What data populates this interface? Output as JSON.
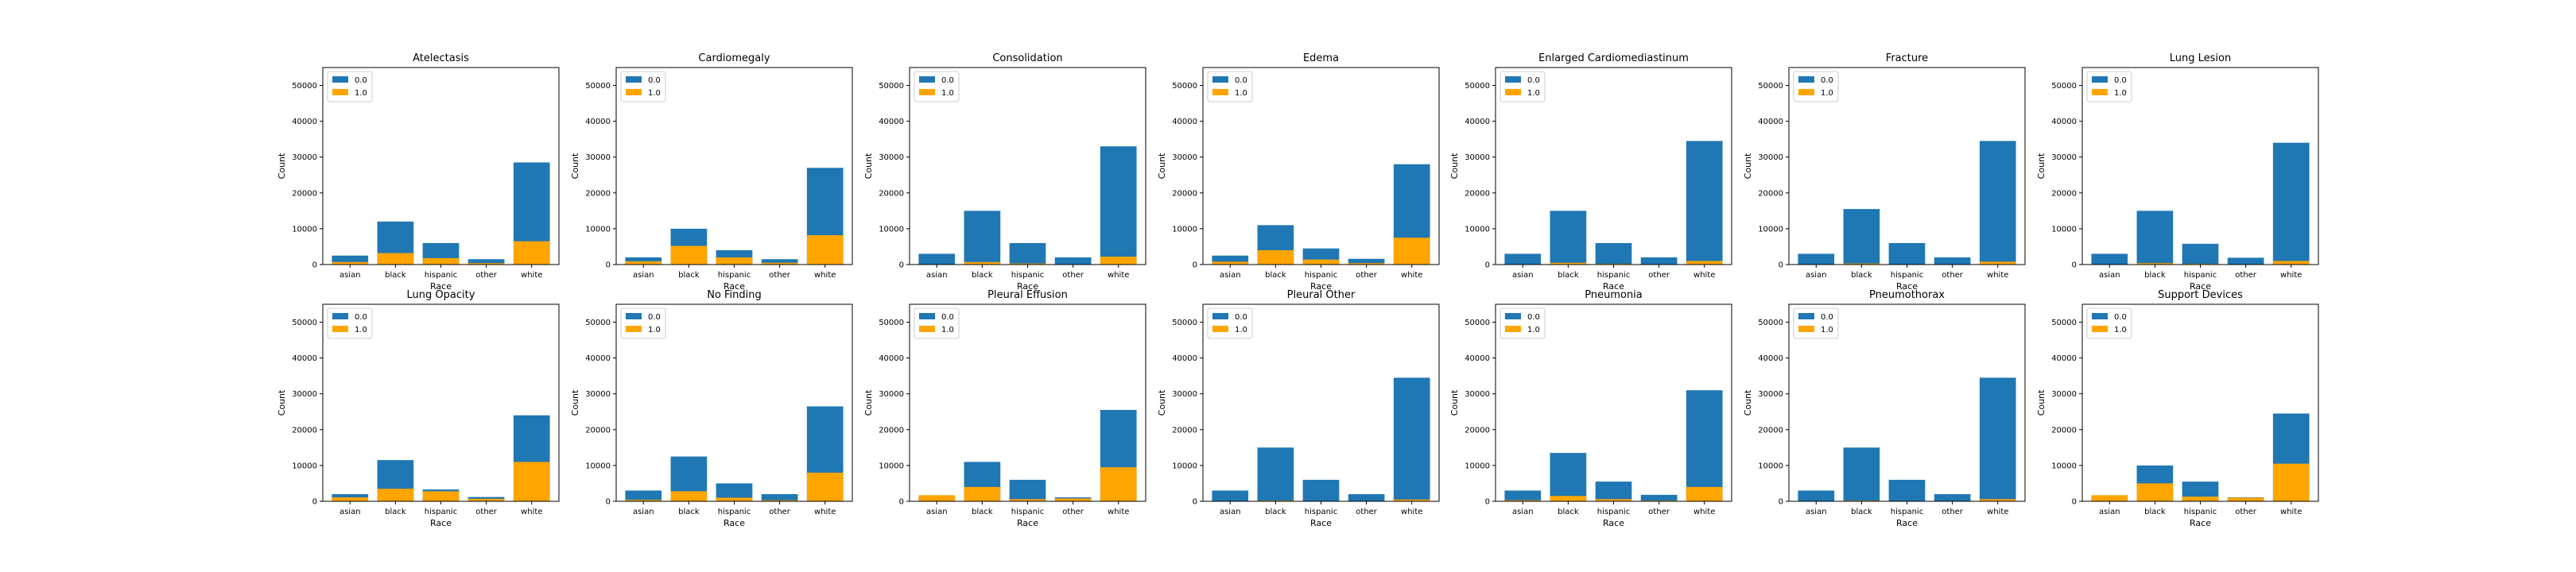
{
  "colors": {
    "0.0": "#1f77b4",
    "1.0": "#ffa500"
  },
  "chart_data": [
    {
      "type": "bar",
      "stacked": "overlaid",
      "title": "Atelectasis",
      "categories": [
        "asian",
        "black",
        "hispanic",
        "other",
        "white"
      ],
      "xlabel": "Race",
      "ylabel": "Count",
      "ylim": [
        0,
        55000
      ],
      "yticks": [
        0,
        10000,
        20000,
        30000,
        40000,
        50000
      ],
      "legend": {
        "placement": "top-left",
        "entries": [
          "0.0",
          "1.0"
        ]
      },
      "series": [
        {
          "name": "0.0",
          "values": [
            2500,
            12000,
            6000,
            1500,
            28500
          ]
        },
        {
          "name": "1.0",
          "values": [
            700,
            3200,
            1800,
            400,
            6500
          ]
        }
      ]
    },
    {
      "type": "bar",
      "stacked": "overlaid",
      "title": "Cardiomegaly",
      "categories": [
        "asian",
        "black",
        "hispanic",
        "other",
        "white"
      ],
      "xlabel": "Race",
      "ylabel": "Count",
      "ylim": [
        0,
        55000
      ],
      "yticks": [
        0,
        10000,
        20000,
        30000,
        40000,
        50000
      ],
      "legend": {
        "placement": "top-left",
        "entries": [
          "0.0",
          "1.0"
        ]
      },
      "series": [
        {
          "name": "0.0",
          "values": [
            2000,
            10000,
            4000,
            1500,
            27000
          ]
        },
        {
          "name": "1.0",
          "values": [
            900,
            5200,
            2000,
            500,
            8200
          ]
        }
      ]
    },
    {
      "type": "bar",
      "stacked": "overlaid",
      "title": "Consolidation",
      "categories": [
        "asian",
        "black",
        "hispanic",
        "other",
        "white"
      ],
      "xlabel": "Race",
      "ylabel": "Count",
      "ylim": [
        0,
        55000
      ],
      "yticks": [
        0,
        10000,
        20000,
        30000,
        40000,
        50000
      ],
      "legend": {
        "placement": "top-left",
        "entries": [
          "0.0",
          "1.0"
        ]
      },
      "series": [
        {
          "name": "0.0",
          "values": [
            3000,
            15000,
            6000,
            2000,
            33000
          ]
        },
        {
          "name": "1.0",
          "values": [
            100,
            700,
            300,
            100,
            2200
          ]
        }
      ]
    },
    {
      "type": "bar",
      "stacked": "overlaid",
      "title": "Edema",
      "categories": [
        "asian",
        "black",
        "hispanic",
        "other",
        "white"
      ],
      "xlabel": "Race",
      "ylabel": "Count",
      "ylim": [
        0,
        55000
      ],
      "yticks": [
        0,
        10000,
        20000,
        30000,
        40000,
        50000
      ],
      "legend": {
        "placement": "top-left",
        "entries": [
          "0.0",
          "1.0"
        ]
      },
      "series": [
        {
          "name": "0.0",
          "values": [
            2500,
            11000,
            4500,
            1600,
            28000
          ]
        },
        {
          "name": "1.0",
          "values": [
            800,
            4000,
            1400,
            400,
            7500
          ]
        }
      ]
    },
    {
      "type": "bar",
      "stacked": "overlaid",
      "title": "Enlarged Cardiomediastinum",
      "categories": [
        "asian",
        "black",
        "hispanic",
        "other",
        "white"
      ],
      "xlabel": "Race",
      "ylabel": "Count",
      "ylim": [
        0,
        55000
      ],
      "yticks": [
        0,
        10000,
        20000,
        30000,
        40000,
        50000
      ],
      "legend": {
        "placement": "top-left",
        "entries": [
          "0.0",
          "1.0"
        ]
      },
      "series": [
        {
          "name": "0.0",
          "values": [
            3000,
            15000,
            6000,
            2000,
            34500
          ]
        },
        {
          "name": "1.0",
          "values": [
            100,
            500,
            200,
            100,
            1000
          ]
        }
      ]
    },
    {
      "type": "bar",
      "stacked": "overlaid",
      "title": "Fracture",
      "categories": [
        "asian",
        "black",
        "hispanic",
        "other",
        "white"
      ],
      "xlabel": "Race",
      "ylabel": "Count",
      "ylim": [
        0,
        55000
      ],
      "yticks": [
        0,
        10000,
        20000,
        30000,
        40000,
        50000
      ],
      "legend": {
        "placement": "top-left",
        "entries": [
          "0.0",
          "1.0"
        ]
      },
      "series": [
        {
          "name": "0.0",
          "values": [
            3000,
            15500,
            6000,
            2000,
            34500
          ]
        },
        {
          "name": "1.0",
          "values": [
            50,
            300,
            100,
            50,
            800
          ]
        }
      ]
    },
    {
      "type": "bar",
      "stacked": "overlaid",
      "title": "Lung Lesion",
      "categories": [
        "asian",
        "black",
        "hispanic",
        "other",
        "white"
      ],
      "xlabel": "Race",
      "ylabel": "Count",
      "ylim": [
        0,
        55000
      ],
      "yticks": [
        0,
        10000,
        20000,
        30000,
        40000,
        50000
      ],
      "legend": {
        "placement": "top-left",
        "entries": [
          "0.0",
          "1.0"
        ]
      },
      "series": [
        {
          "name": "0.0",
          "values": [
            3000,
            15000,
            5800,
            1900,
            34000
          ]
        },
        {
          "name": "1.0",
          "values": [
            100,
            400,
            200,
            100,
            1000
          ]
        }
      ]
    },
    {
      "type": "bar",
      "stacked": "overlaid",
      "title": "Lung Opacity",
      "categories": [
        "asian",
        "black",
        "hispanic",
        "other",
        "white"
      ],
      "xlabel": "Race",
      "ylabel": "Count",
      "ylim": [
        0,
        55000
      ],
      "yticks": [
        0,
        10000,
        20000,
        30000,
        40000,
        50000
      ],
      "legend": {
        "placement": "top-left",
        "entries": [
          "0.0",
          "1.0"
        ]
      },
      "series": [
        {
          "name": "0.0",
          "values": [
            2000,
            11500,
            3300,
            1200,
            24000
          ]
        },
        {
          "name": "1.0",
          "values": [
            1100,
            3500,
            2800,
            700,
            11000
          ]
        }
      ]
    },
    {
      "type": "bar",
      "stacked": "overlaid",
      "title": "No Finding",
      "categories": [
        "asian",
        "black",
        "hispanic",
        "other",
        "white"
      ],
      "xlabel": "Race",
      "ylabel": "Count",
      "ylim": [
        0,
        55000
      ],
      "yticks": [
        0,
        10000,
        20000,
        30000,
        40000,
        50000
      ],
      "legend": {
        "placement": "top-left",
        "entries": [
          "0.0",
          "1.0"
        ]
      },
      "series": [
        {
          "name": "0.0",
          "values": [
            3000,
            12500,
            5000,
            2000,
            26500
          ]
        },
        {
          "name": "1.0",
          "values": [
            400,
            2800,
            1000,
            300,
            8000
          ]
        }
      ]
    },
    {
      "type": "bar",
      "stacked": "overlaid",
      "title": "Pleural Effusion",
      "categories": [
        "asian",
        "black",
        "hispanic",
        "other",
        "white"
      ],
      "xlabel": "Race",
      "ylabel": "Count",
      "ylim": [
        0,
        55000
      ],
      "yticks": [
        0,
        10000,
        20000,
        30000,
        40000,
        50000
      ],
      "legend": {
        "placement": "top-left",
        "entries": [
          "0.0",
          "1.0"
        ]
      },
      "series": [
        {
          "name": "0.0",
          "values": [
            1300,
            11000,
            6000,
            1100,
            25500
          ]
        },
        {
          "name": "1.0",
          "values": [
            1700,
            4000,
            600,
            800,
            9500
          ]
        }
      ]
    },
    {
      "type": "bar",
      "stacked": "overlaid",
      "title": "Pleural Other",
      "categories": [
        "asian",
        "black",
        "hispanic",
        "other",
        "white"
      ],
      "xlabel": "Race",
      "ylabel": "Count",
      "ylim": [
        0,
        55000
      ],
      "yticks": [
        0,
        10000,
        20000,
        30000,
        40000,
        50000
      ],
      "legend": {
        "placement": "top-left",
        "entries": [
          "0.0",
          "1.0"
        ]
      },
      "series": [
        {
          "name": "0.0",
          "values": [
            3000,
            15000,
            6000,
            2000,
            34500
          ]
        },
        {
          "name": "1.0",
          "values": [
            50,
            200,
            100,
            50,
            500
          ]
        }
      ]
    },
    {
      "type": "bar",
      "stacked": "overlaid",
      "title": "Pneumonia",
      "categories": [
        "asian",
        "black",
        "hispanic",
        "other",
        "white"
      ],
      "xlabel": "Race",
      "ylabel": "Count",
      "ylim": [
        0,
        55000
      ],
      "yticks": [
        0,
        10000,
        20000,
        30000,
        40000,
        50000
      ],
      "legend": {
        "placement": "top-left",
        "entries": [
          "0.0",
          "1.0"
        ]
      },
      "series": [
        {
          "name": "0.0",
          "values": [
            3000,
            13500,
            5500,
            1800,
            31000
          ]
        },
        {
          "name": "1.0",
          "values": [
            300,
            1500,
            600,
            200,
            4000
          ]
        }
      ]
    },
    {
      "type": "bar",
      "stacked": "overlaid",
      "title": "Pneumothorax",
      "categories": [
        "asian",
        "black",
        "hispanic",
        "other",
        "white"
      ],
      "xlabel": "Race",
      "ylabel": "Count",
      "ylim": [
        0,
        55000
      ],
      "yticks": [
        0,
        10000,
        20000,
        30000,
        40000,
        50000
      ],
      "legend": {
        "placement": "top-left",
        "entries": [
          "0.0",
          "1.0"
        ]
      },
      "series": [
        {
          "name": "0.0",
          "values": [
            3000,
            15000,
            6000,
            2000,
            34500
          ]
        },
        {
          "name": "1.0",
          "values": [
            50,
            200,
            100,
            50,
            600
          ]
        }
      ]
    },
    {
      "type": "bar",
      "stacked": "overlaid",
      "title": "Support Devices",
      "categories": [
        "asian",
        "black",
        "hispanic",
        "other",
        "white"
      ],
      "xlabel": "Race",
      "ylabel": "Count",
      "ylim": [
        0,
        55000
      ],
      "yticks": [
        0,
        10000,
        20000,
        30000,
        40000,
        50000
      ],
      "legend": {
        "placement": "top-left",
        "entries": [
          "0.0",
          "1.0"
        ]
      },
      "series": [
        {
          "name": "0.0",
          "values": [
            1200,
            10000,
            5500,
            1100,
            24500
          ]
        },
        {
          "name": "1.0",
          "values": [
            1700,
            5000,
            1300,
            1000,
            10500
          ]
        }
      ]
    }
  ]
}
